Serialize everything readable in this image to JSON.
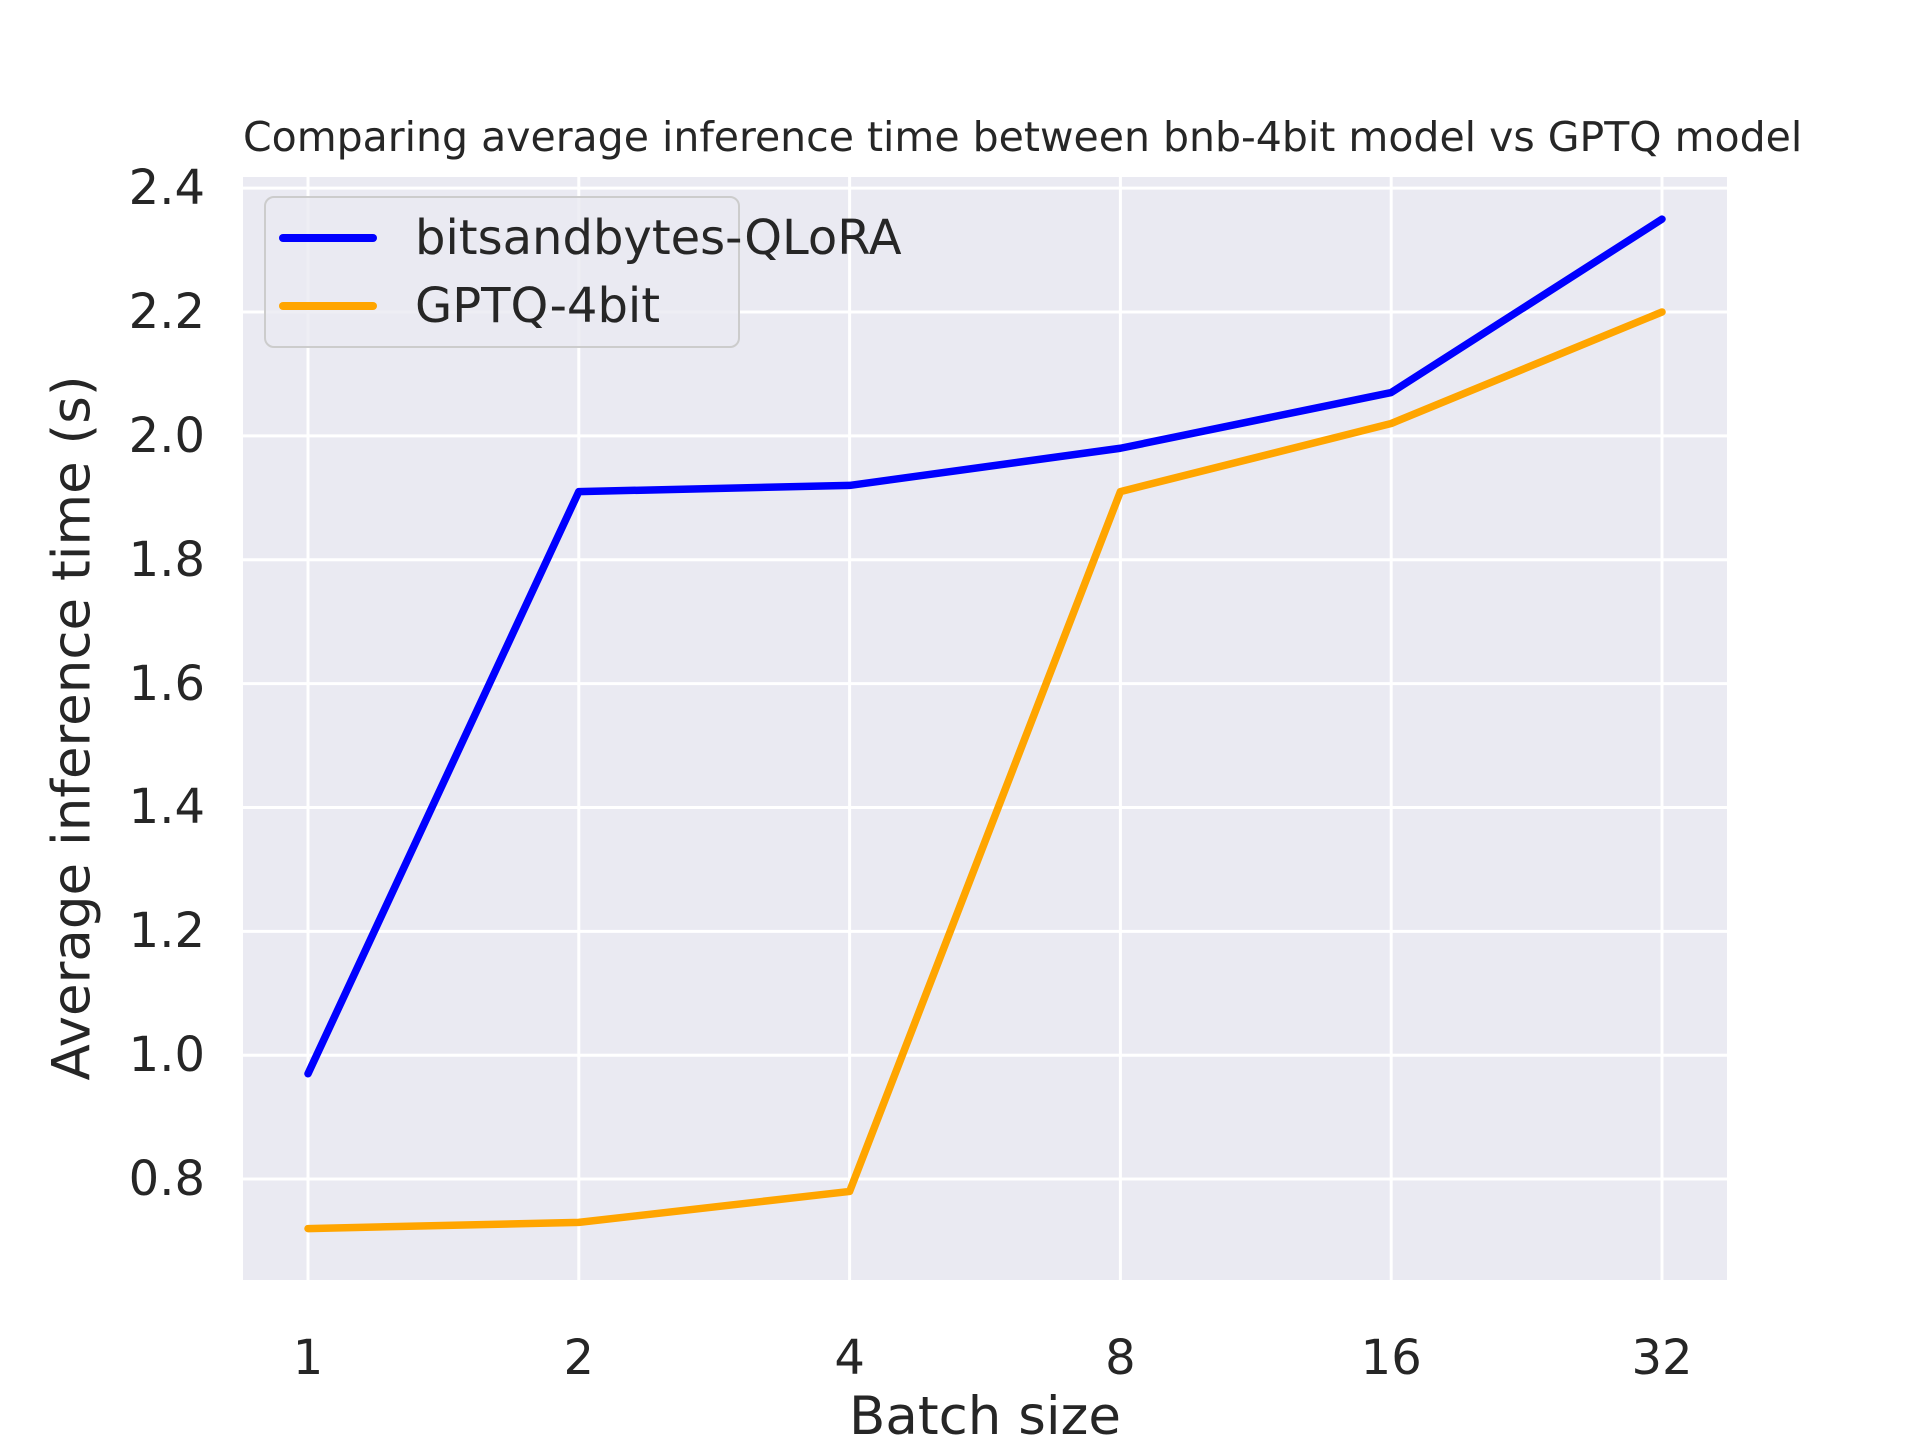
{
  "chart_data": {
    "type": "line",
    "title": "Comparing average inference time between bnb-4bit model vs GPTQ model",
    "xlabel": "Batch size",
    "ylabel": "Average inference time (s)",
    "categories": [
      1,
      2,
      4,
      8,
      16,
      32
    ],
    "x_scale": "log2",
    "series": [
      {
        "name": "bitsandbytes-QLoRA",
        "color": "#0000ff",
        "values": [
          0.97,
          1.91,
          1.92,
          1.98,
          2.07,
          2.35
        ]
      },
      {
        "name": "GPTQ-4bit",
        "color": "#ffa500",
        "values": [
          0.72,
          0.73,
          0.78,
          1.91,
          2.02,
          2.2
        ]
      }
    ],
    "y_ticks": [
      0.8,
      1.0,
      1.2,
      1.4,
      1.6,
      1.8,
      2.0,
      2.2,
      2.4
    ],
    "x_tick_labels": [
      "1",
      "2",
      "4",
      "8",
      "16",
      "32"
    ],
    "ylim": [
      0.637,
      2.418
    ],
    "xlim_log2": [
      -0.24,
      5.24
    ],
    "grid": true,
    "legend_position": "upper left",
    "colors": {
      "axes_background": "#eaeaf2",
      "grid": "#ffffff",
      "text": "#262626",
      "legend_border": "#cccccc"
    }
  }
}
